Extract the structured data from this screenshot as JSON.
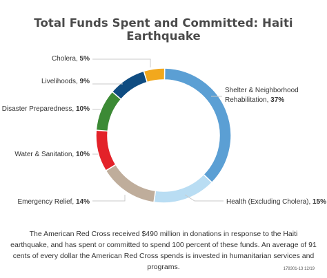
{
  "chart_data": {
    "type": "pie",
    "variant": "donut",
    "title": "Total Funds Spent and Committed: Haiti Earthquake",
    "slices": [
      {
        "label": "Shelter & Neighborhood Rehabilitation,",
        "label_lines": [
          "Shelter & Neighborhood",
          "Rehabilitation,"
        ],
        "pct_label": "37%",
        "value": 37,
        "color": "#5b9fd4"
      },
      {
        "label": "Health (Excluding Cholera),",
        "label_lines": [
          "Health (Excluding Cholera),"
        ],
        "pct_label": "15%",
        "value": 15,
        "color": "#b9ddf3"
      },
      {
        "label": "Emergency Relief,",
        "label_lines": [
          "Emergency Relief,"
        ],
        "pct_label": "14%",
        "value": 14,
        "color": "#bfad9b"
      },
      {
        "label": "Water & Sanitation,",
        "label_lines": [
          "Water & Sanitation,"
        ],
        "pct_label": "10%",
        "value": 10,
        "color": "#e32229"
      },
      {
        "label": "Disaster Preparedness,",
        "label_lines": [
          "Disaster Preparedness,"
        ],
        "pct_label": "10%",
        "value": 10,
        "color": "#3c8a35"
      },
      {
        "label": "Livelihoods,",
        "label_lines": [
          "Livelihoods,"
        ],
        "pct_label": "9%",
        "value": 9,
        "color": "#0f4c81"
      },
      {
        "label": "Cholera,",
        "label_lines": [
          "Cholera,"
        ],
        "pct_label": "5%",
        "value": 5,
        "color": "#f2a81d"
      }
    ]
  },
  "footnote": "The American Red Cross received $490 million in donations in response to the Haiti earthquake, and has spent or committed to spend 100 percent of these funds. An average of 91 cents of every dollar the American Red Cross spends is invested in humanitarian services and programs.",
  "code": "178301-13 12/19"
}
